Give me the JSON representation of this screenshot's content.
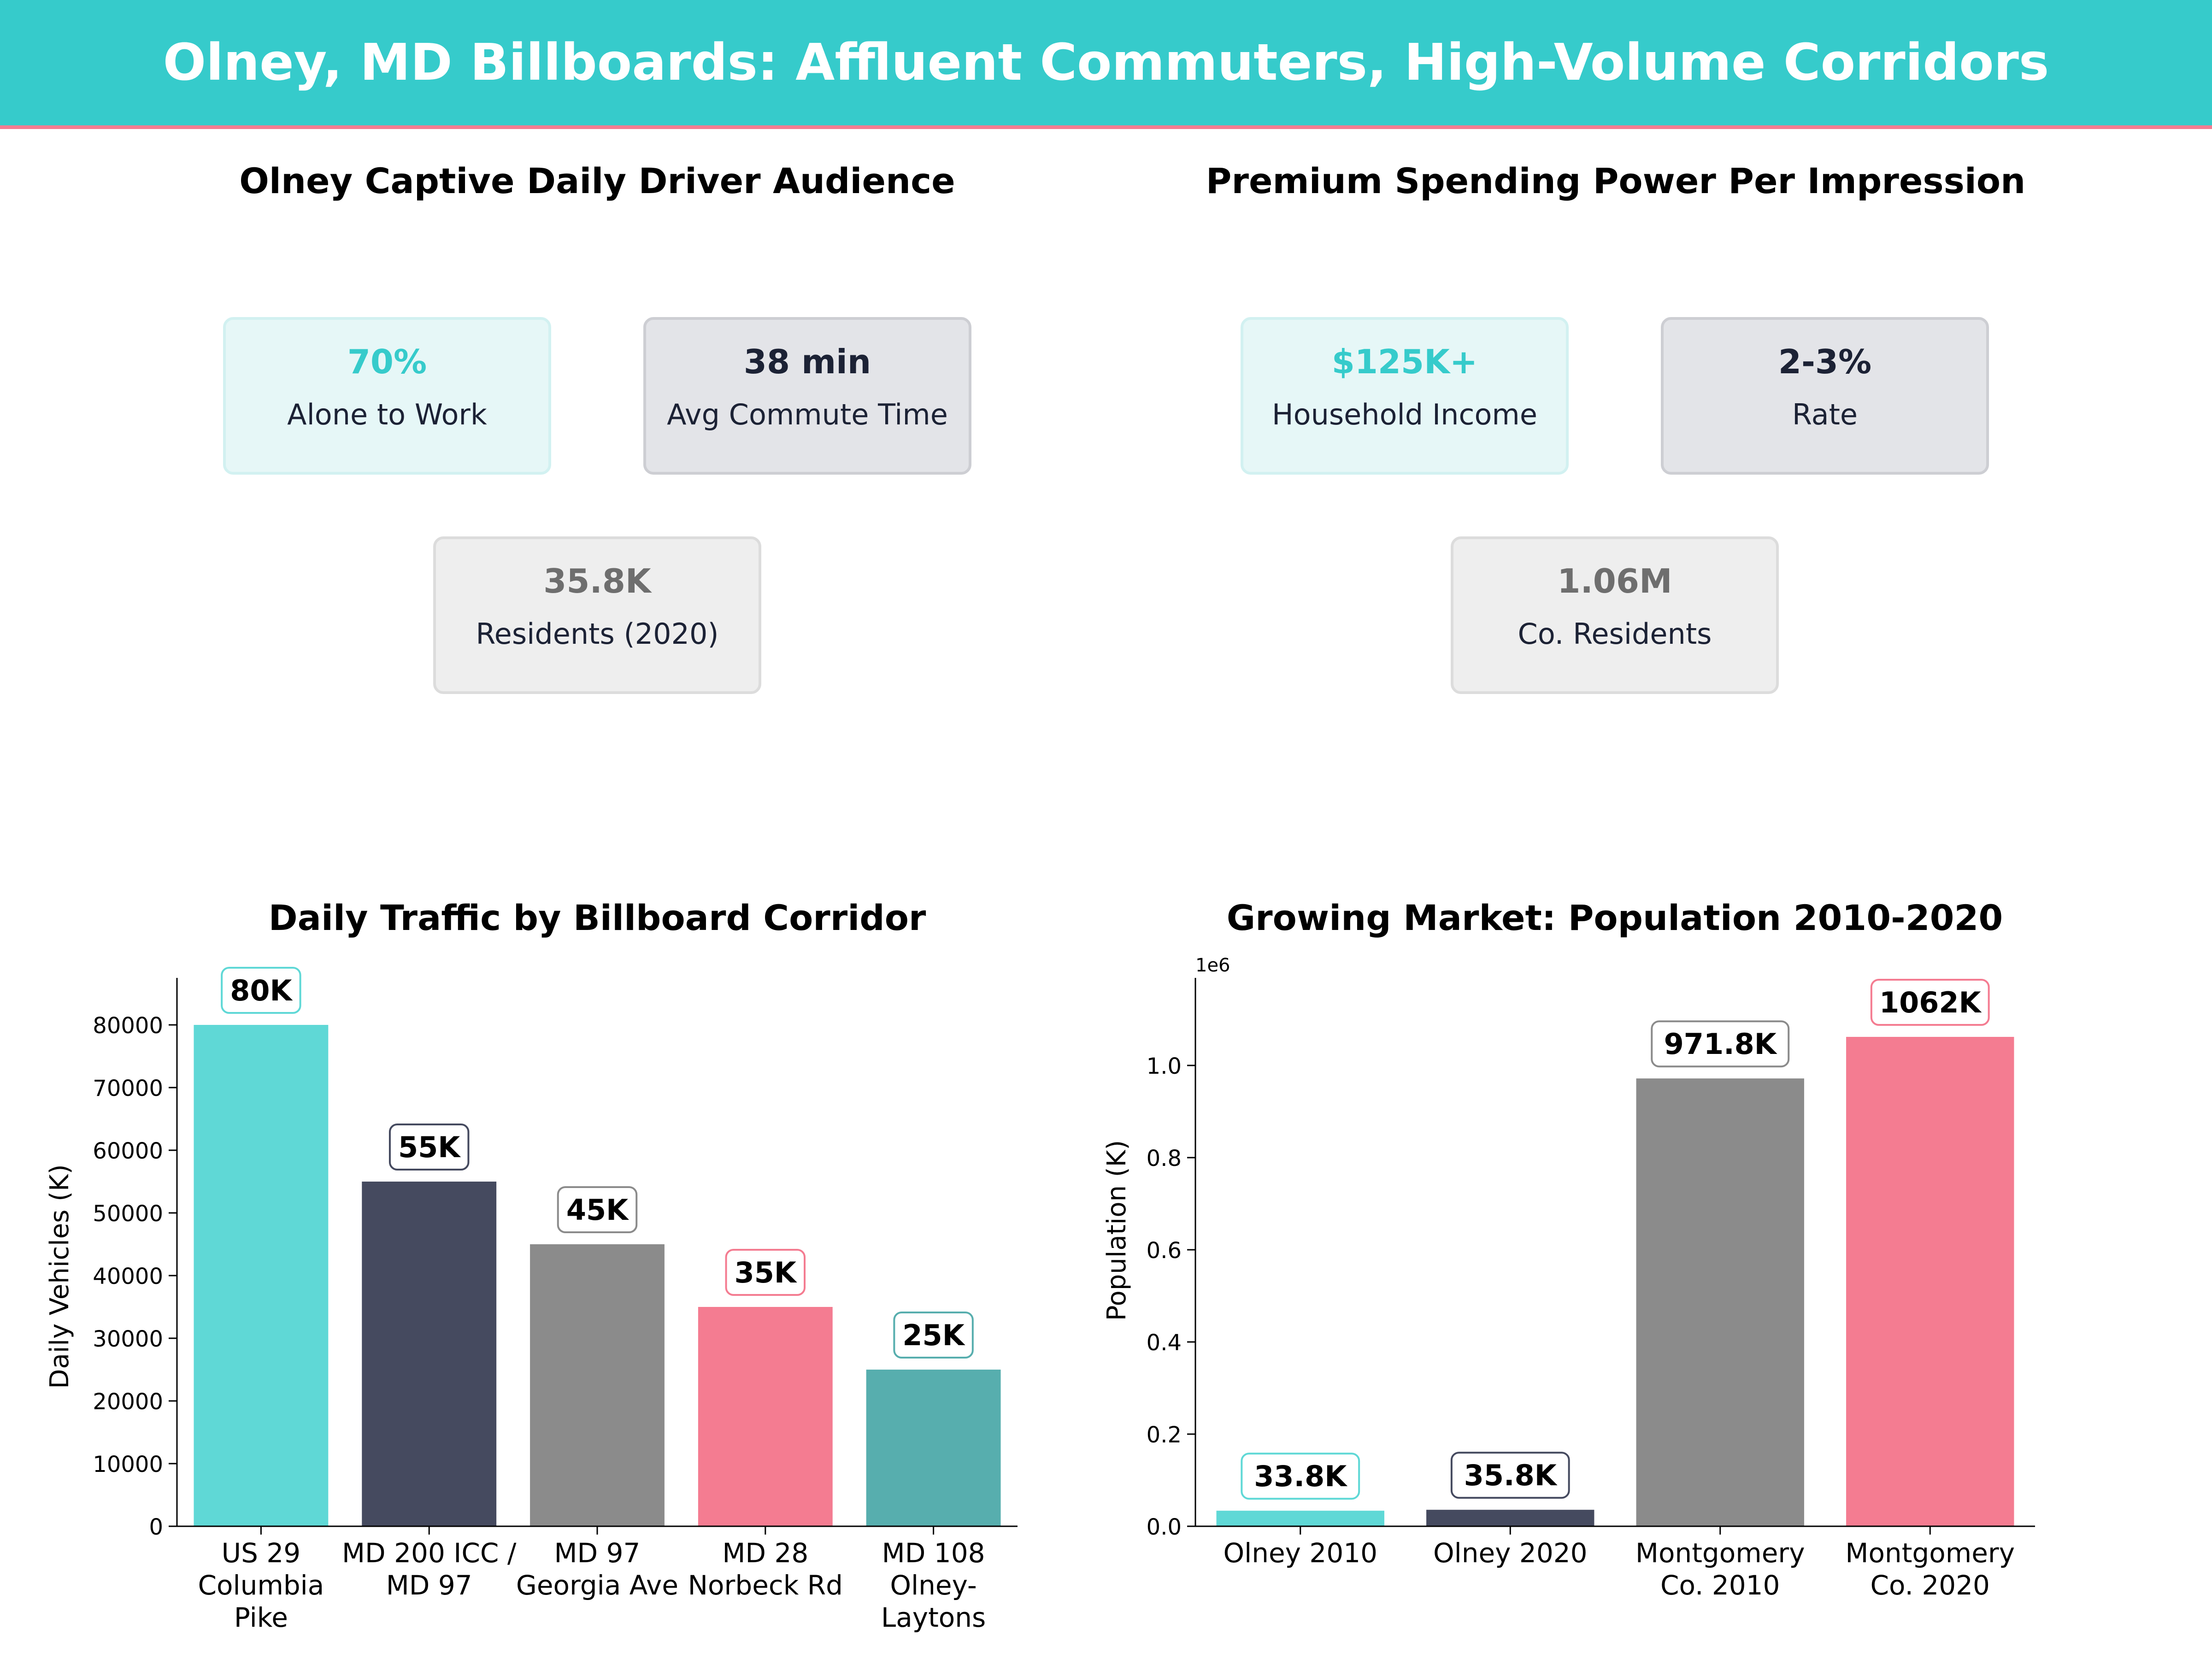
{
  "header": {
    "title": "Olney, MD Billboards: Affluent Commuters, High-Volume Corridors"
  },
  "colors": {
    "teal": "#36CBCB",
    "teal_light": "#5FD8D6",
    "navy": "#454A5F",
    "gray": "#8B8B8B",
    "pink": "#F47C91",
    "teal_dark": "#57AEAE",
    "navy_text": "#1C2235",
    "gray_text": "#6E6E6E"
  },
  "audience_panel": {
    "title": "Olney Captive Daily Driver Audience",
    "kpis": [
      {
        "value": "70%",
        "label": "Alone to Work"
      },
      {
        "value": "38 min",
        "label": "Avg Commute Time"
      },
      {
        "value": "35.8K",
        "label": "Residents (2020)"
      }
    ]
  },
  "spending_panel": {
    "title": "Premium Spending Power Per Impression",
    "kpis": [
      {
        "value": "$125K+",
        "label": "Household Income"
      },
      {
        "value": "2-3%",
        "label": "Rate"
      },
      {
        "value": "1.06M",
        "label": "Co. Residents"
      }
    ]
  },
  "chart_data": [
    {
      "type": "bar",
      "title": "Daily Traffic by Billboard Corridor",
      "xlabel": "",
      "ylabel": "Daily Vehicles (K)",
      "categories": [
        [
          "US 29",
          "Columbia",
          "Pike"
        ],
        [
          "MD 200 ICC /",
          "MD 97"
        ],
        [
          "MD 97",
          "Georgia Ave"
        ],
        [
          "MD 28",
          "Norbeck Rd"
        ],
        [
          "MD 108",
          "Olney-",
          "Laytons"
        ]
      ],
      "values": [
        80000,
        55000,
        45000,
        35000,
        25000
      ],
      "data_labels": [
        "80K",
        "55K",
        "45K",
        "35K",
        "25K"
      ],
      "ylim": [
        0,
        87500
      ],
      "yticks": [
        0,
        10000,
        20000,
        30000,
        40000,
        50000,
        60000,
        70000,
        80000
      ],
      "ytick_labels": [
        "0",
        "10000",
        "20000",
        "30000",
        "40000",
        "50000",
        "60000",
        "70000",
        "80000"
      ],
      "bar_colors": [
        "#5FD8D6",
        "#454A5F",
        "#8B8B8B",
        "#F47C91",
        "#57AEAE"
      ],
      "label_border_colors": [
        "#5FD8D6",
        "#454A5F",
        "#8B8B8B",
        "#F47C91",
        "#57AEAE"
      ],
      "grid": false
    },
    {
      "type": "bar",
      "title": "Growing Market: Population 2010-2020",
      "xlabel": "",
      "ylabel": "Population (K)",
      "offset_text": "1e6",
      "categories": [
        [
          "Olney 2010"
        ],
        [
          "Olney 2020"
        ],
        [
          "Montgomery",
          "Co. 2010"
        ],
        [
          "Montgomery",
          "Co. 2020"
        ]
      ],
      "values": [
        33800,
        35800,
        971800,
        1062000
      ],
      "data_labels": [
        "33.8K",
        "35.8K",
        "971.8K",
        "1062K"
      ],
      "ylim": [
        0,
        1190000
      ],
      "yticks": [
        0,
        200000,
        400000,
        600000,
        800000,
        1000000
      ],
      "ytick_labels": [
        "0.0",
        "0.2",
        "0.4",
        "0.6",
        "0.8",
        "1.0"
      ],
      "bar_colors": [
        "#5FD8D6",
        "#454A5F",
        "#8B8B8B",
        "#F47C91"
      ],
      "label_border_colors": [
        "#5FD8D6",
        "#454A5F",
        "#8B8B8B",
        "#F47C91"
      ],
      "grid": false
    }
  ]
}
